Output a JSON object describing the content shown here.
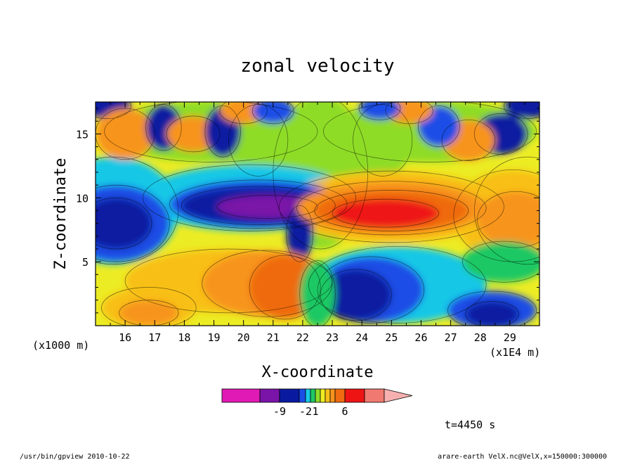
{
  "chart_data": {
    "type": "heatmap",
    "title": "zonal velocity",
    "xlabel": "X-coordinate",
    "ylabel": "Z-coordinate",
    "x_ticks": [
      "16",
      "17",
      "18",
      "19",
      "20",
      "21",
      "22",
      "23",
      "24",
      "25",
      "26",
      "27",
      "28",
      "29"
    ],
    "x_tick_values": [
      16,
      17,
      18,
      19,
      20,
      21,
      22,
      23,
      24,
      25,
      26,
      27,
      28,
      29
    ],
    "x_unit_left": "(x1000 m)",
    "x_unit_right": "(x1E4 m)",
    "y_ticks": [
      "5",
      "10",
      "15"
    ],
    "y_tick_values": [
      5,
      10,
      15
    ],
    "xlim": [
      15,
      30
    ],
    "ylim": [
      0,
      17.5
    ],
    "colorbar": {
      "labels": [
        "-9",
        "-2",
        "1",
        "6"
      ],
      "colors": [
        "#e01ab4",
        "#7a14a8",
        "#0a1aa0",
        "#1a4ee6",
        "#18c8e6",
        "#1ec864",
        "#8edc28",
        "#ecec24",
        "#f8c018",
        "#f7941d",
        "#ef6a10",
        "#ee1414",
        "#f07a72",
        "#f6b0b0"
      ]
    },
    "features": [
      {
        "name": "negative-core",
        "x": 20.8,
        "z": 9.3,
        "value": -9
      },
      {
        "name": "positive-core",
        "x": 24.8,
        "z": 8.8,
        "value": 8
      },
      {
        "name": "lower-left-positive",
        "x": 21.5,
        "z": 3,
        "value": 5
      },
      {
        "name": "lower-right-negative",
        "x": 24,
        "z": 2.5,
        "value": -6
      }
    ]
  },
  "time_label": "t=4450 s",
  "footer_left": "/usr/bin/gpview   2010-10-22",
  "footer_right": "arare-earth_VelX.nc@VelX,x=150000:300000"
}
